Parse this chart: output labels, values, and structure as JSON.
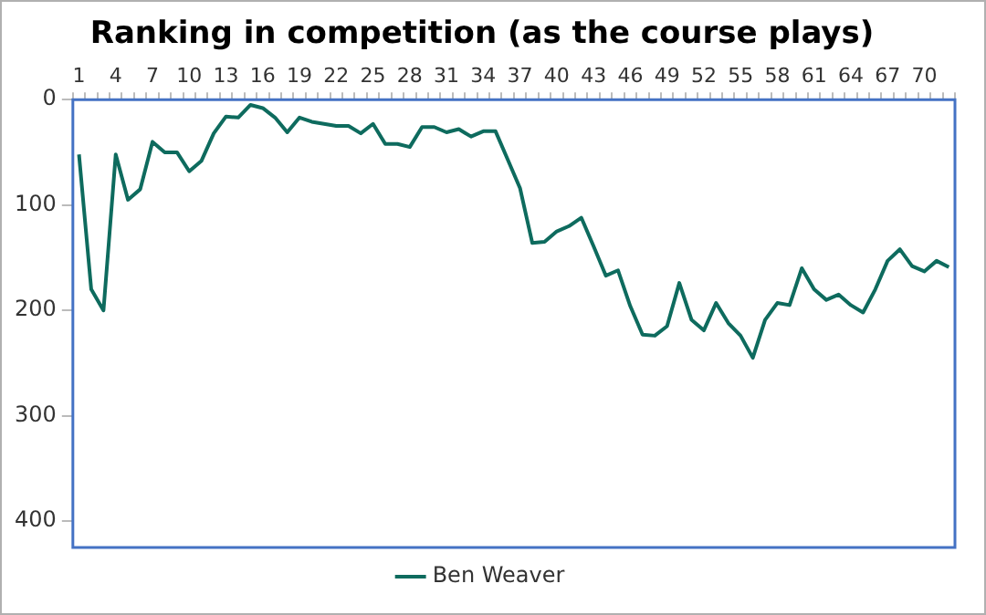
{
  "chart_data": {
    "type": "line",
    "title": "Ranking in competition (as the course plays)",
    "categories": [
      "1",
      null,
      null,
      "4",
      null,
      null,
      "7",
      null,
      null,
      "10",
      null,
      null,
      "13",
      null,
      null,
      "16",
      null,
      null,
      "19",
      null,
      null,
      "22",
      null,
      null,
      "25",
      null,
      null,
      "28",
      null,
      null,
      "31",
      null,
      null,
      "34",
      null,
      null,
      "37",
      null,
      null,
      "40",
      null,
      null,
      "43",
      null,
      null,
      "46",
      null,
      null,
      "49",
      null,
      null,
      "52",
      null,
      null,
      "55",
      null,
      null,
      "58",
      null,
      null,
      "61",
      null,
      null,
      "64",
      null,
      null,
      "67",
      null,
      null,
      "70",
      null,
      null
    ],
    "series": [
      {
        "name": "Ben Weaver",
        "color": "#0e6b5e",
        "values": [
          52,
          180,
          200,
          52,
          95,
          85,
          40,
          50,
          50,
          68,
          58,
          32,
          16,
          17,
          5,
          8,
          17,
          31,
          17,
          21,
          23,
          25,
          25,
          32,
          23,
          42,
          42,
          45,
          26,
          26,
          31,
          28,
          35,
          30,
          30,
          57,
          84,
          136,
          135,
          125,
          120,
          112,
          139,
          167,
          162,
          196,
          223,
          224,
          215,
          174,
          209,
          219,
          193,
          212,
          224,
          245,
          209,
          193,
          195,
          160,
          180,
          190,
          185,
          195,
          202,
          180,
          153,
          142,
          158,
          163,
          153,
          159
        ]
      }
    ],
    "ylim": [
      425,
      0
    ],
    "yticks": [
      0,
      100,
      200,
      300,
      400
    ],
    "legend": "bottom",
    "marker": "none",
    "line_style": "solid"
  }
}
